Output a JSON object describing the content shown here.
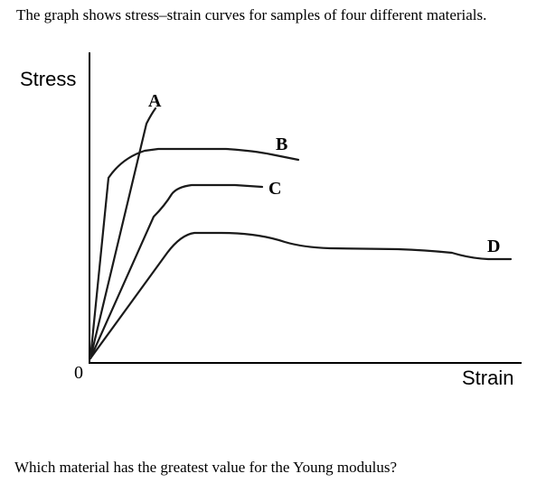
{
  "intro_text": "The graph shows stress–strain curves for samples of four different materials.",
  "question_text": "Which material has the greatest value for the Young modulus?",
  "graph": {
    "y_axis_label": "Stress",
    "x_axis_label": "Strain",
    "origin_label": "0",
    "curves": [
      {
        "id": "a",
        "label": "A"
      },
      {
        "id": "b",
        "label": "B"
      },
      {
        "id": "c",
        "label": "C"
      },
      {
        "id": "d",
        "label": "D"
      }
    ]
  }
}
